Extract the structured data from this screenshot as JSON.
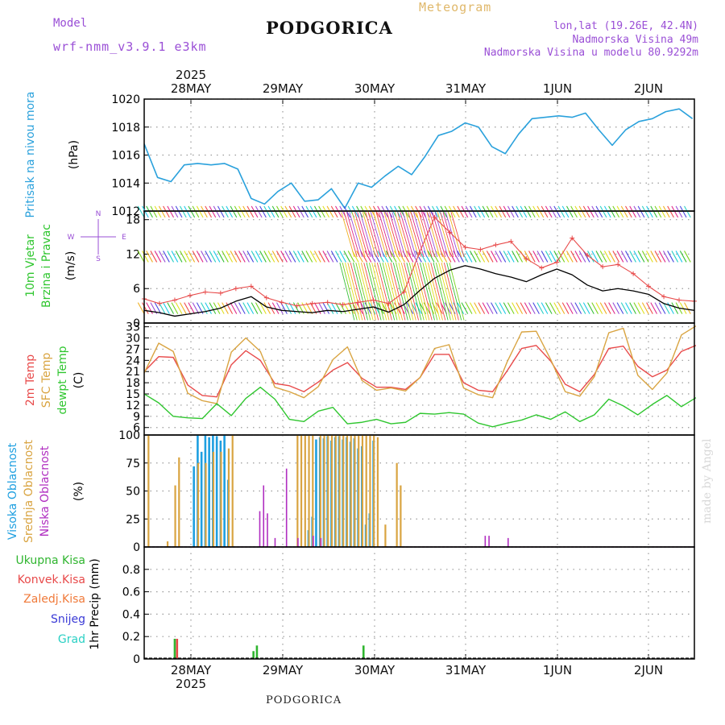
{
  "header": {
    "title": "PODGORICA",
    "bottom_title": "PODGORICA",
    "model_label": "Model",
    "model_name": "wrf-nmm_v3.9.1 e3km",
    "meteogram": "Meteogram",
    "lonlat": "lon,lat (19.26E, 42.4N)",
    "elevation": "Nadmorska Visina 49m",
    "elevation_model": "Nadmorska Visina u modelu 80.9292m",
    "watermark": "made by Angel"
  },
  "time_axis": {
    "year": "2025",
    "day_labels": [
      "28MAY",
      "29MAY",
      "30MAY",
      "31MAY",
      "1JUN",
      "2JUN"
    ]
  },
  "colors": {
    "pressure": "#2aa1dc",
    "temp2m": "#e84a4a",
    "sfc_temp": "#d9a441",
    "dewpoint": "#2fc62f",
    "high_cloud": "#1e9fe0",
    "mid_cloud": "#d9a441",
    "low_cloud": "#b02ec0",
    "precip_total": "#2fb52f",
    "precip_conv": "#e84a4a",
    "wind_speed": "#000000",
    "wind_gust": "#e84a4a",
    "purple": "#9a4fd6"
  },
  "chart_data": [
    {
      "type": "line",
      "title": "Pritisak na nivou mora",
      "ylabel": "(hPa)",
      "ylim": [
        1012,
        1020
      ],
      "yticks": [
        1012,
        1014,
        1016,
        1018,
        1020
      ],
      "x_hours": [
        0,
        3,
        6,
        9,
        12,
        15,
        18,
        21,
        24,
        27,
        30,
        33,
        36,
        39,
        42,
        45,
        48,
        51,
        54,
        57,
        60,
        63,
        66,
        69,
        72,
        75,
        78,
        81,
        84,
        87,
        90,
        93,
        96,
        99,
        102,
        105,
        108,
        111,
        114,
        117,
        120,
        123,
        126,
        129,
        132,
        135,
        138,
        141,
        144
      ],
      "series": [
        {
          "name": "SLP",
          "values": [
            1016.8,
            1014.4,
            1014.1,
            1015.3,
            1015.4,
            1015.3,
            1015.4,
            1015.0,
            1012.9,
            1012.5,
            1013.4,
            1014.0,
            1012.7,
            1012.8,
            1013.6,
            1012.2,
            1014.0,
            1013.7,
            1014.5,
            1015.2,
            1014.6,
            1015.9,
            1017.4,
            1017.7,
            1018.3,
            1018.0,
            1016.6,
            1016.1,
            1017.5,
            1018.6,
            1018.7,
            1018.8,
            1018.7,
            1019.0,
            1017.8,
            1016.7,
            1017.8,
            1018.4,
            1018.6,
            1019.1,
            1019.3,
            1018.6
          ]
        }
      ],
      "series_x_step": 3.5
    },
    {
      "type": "line",
      "title": "10m Vjetar Brzina i Pravac",
      "ylabel": "(m/s)",
      "ylim": [
        0,
        19.5
      ],
      "yticks": [
        0,
        6,
        12,
        18
      ],
      "compass": [
        "N",
        "W",
        "E",
        "S"
      ],
      "series": [
        {
          "name": "wind speed",
          "values": [
            2.2,
            1.8,
            1.2,
            1.6,
            2.0,
            2.6,
            3.8,
            4.6,
            2.8,
            2.2,
            2.0,
            1.8,
            2.2,
            2.0,
            2.4,
            2.8,
            1.9,
            3.2,
            5.6,
            7.8,
            9.2,
            10.0,
            9.4,
            8.6,
            8.0,
            7.2,
            8.4,
            9.4,
            8.4,
            6.6,
            5.6,
            6.0,
            5.6,
            5.0,
            3.4,
            2.6,
            2.2
          ]
        },
        {
          "name": "wind gust",
          "values": [
            4.2,
            3.4,
            4.0,
            4.8,
            5.4,
            5.2,
            6.0,
            6.4,
            4.4,
            3.6,
            3.0,
            3.4,
            3.6,
            3.2,
            3.6,
            4.0,
            3.4,
            5.4,
            12.2,
            18.4,
            15.8,
            13.2,
            12.8,
            13.6,
            14.2,
            11.2,
            9.6,
            10.6,
            14.8,
            11.8,
            9.8,
            10.2,
            8.6,
            6.4,
            4.6,
            4.0,
            3.8
          ]
        }
      ],
      "series_x_step": 4.0
    },
    {
      "type": "line",
      "title": "2m Temp / SFC Temp / dewpt Temp",
      "ylabel": "(C)",
      "ylim": [
        4,
        34
      ],
      "yticks": [
        6,
        9,
        12,
        15,
        18,
        21,
        24,
        27,
        30,
        33
      ],
      "series": [
        {
          "name": "2m Temp",
          "values": [
            21.0,
            25.0,
            24.8,
            17.4,
            14.6,
            14.2,
            22.8,
            26.6,
            24.0,
            17.8,
            17.2,
            15.6,
            18.2,
            21.4,
            23.4,
            19.2,
            16.8,
            16.8,
            16.2,
            19.4,
            25.6,
            25.6,
            18.0,
            16.0,
            15.6,
            21.2,
            27.2,
            28.0,
            23.8,
            17.6,
            15.6,
            20.2,
            27.2,
            27.8,
            22.4,
            19.6,
            21.4,
            26.4,
            28.0
          ]
        },
        {
          "name": "SFC Temp",
          "values": [
            20.6,
            28.6,
            26.4,
            15.2,
            13.2,
            12.4,
            26.2,
            30.0,
            26.4,
            16.8,
            15.6,
            14.0,
            17.0,
            24.2,
            27.6,
            18.6,
            16.0,
            16.6,
            15.8,
            19.4,
            27.2,
            28.2,
            16.6,
            14.8,
            14.0,
            23.6,
            31.6,
            31.8,
            24.2,
            15.6,
            14.4,
            19.6,
            31.4,
            32.6,
            20.0,
            16.2,
            20.6,
            30.8,
            33.2
          ]
        },
        {
          "name": "dewpt Temp",
          "values": [
            15.0,
            12.6,
            9.0,
            8.6,
            8.4,
            12.4,
            9.2,
            13.8,
            16.8,
            13.6,
            8.2,
            7.6,
            10.4,
            11.4,
            7.0,
            7.4,
            8.2,
            7.0,
            7.4,
            9.8,
            9.6,
            10.0,
            9.6,
            7.2,
            6.2,
            7.2,
            8.0,
            9.4,
            8.2,
            10.2,
            7.6,
            9.4,
            13.6,
            11.8,
            9.4,
            12.2,
            14.6,
            11.6,
            14.0
          ]
        }
      ],
      "series_x_step": 3.8
    },
    {
      "type": "bar",
      "title": "Visoka Oblacnost / Srednja Oblacnost / Niska Oblacnost",
      "ylabel": "(%)",
      "ylim": [
        0,
        100
      ],
      "yticks": [
        0,
        25,
        50,
        75,
        100
      ],
      "series": [
        {
          "name": "Visoka Oblacnost",
          "hours": [
            13,
            14,
            15,
            16,
            17,
            18,
            19,
            20,
            21,
            22,
            43,
            44,
            45,
            46,
            47,
            48,
            49,
            50,
            51,
            52,
            53,
            54,
            55,
            56,
            57,
            58,
            59,
            60
          ],
          "values": [
            72,
            100,
            85,
            100,
            98,
            100,
            99,
            95,
            100,
            60,
            15,
            27,
            96,
            98,
            97,
            99,
            95,
            98,
            99,
            96,
            98,
            94,
            97,
            88,
            90,
            20,
            30,
            95
          ]
        },
        {
          "name": "Srednja Oblacnost",
          "hours": [
            1,
            6,
            8,
            9,
            14,
            16,
            18,
            20,
            22,
            23,
            40,
            41,
            42,
            43,
            44,
            46,
            47,
            48,
            49,
            50,
            51,
            52,
            53,
            54,
            55,
            56,
            57,
            58,
            59,
            60,
            61,
            63,
            66,
            67
          ],
          "values": [
            100,
            5,
            55,
            80,
            75,
            75,
            85,
            85,
            88,
            100,
            100,
            100,
            100,
            100,
            100,
            100,
            100,
            100,
            100,
            100,
            100,
            100,
            100,
            100,
            100,
            100,
            100,
            100,
            100,
            100,
            98,
            20,
            75,
            55
          ]
        },
        {
          "name": "Niska Oblacnost",
          "hours": [
            30,
            31,
            32,
            34,
            37,
            40,
            44,
            46,
            89,
            90,
            95
          ],
          "values": [
            32,
            55,
            30,
            8,
            70,
            8,
            10,
            8,
            10,
            10,
            8
          ]
        }
      ]
    },
    {
      "type": "bar",
      "title": "1hr Precip",
      "ylabel": "(mm)",
      "ylim": [
        0,
        1.0
      ],
      "yticks": [
        0,
        0.2,
        0.4,
        0.6,
        0.8
      ],
      "legend": [
        "Ukupna Kisa",
        "Konvek.Kisa",
        "Zaledj.Kisa",
        "Snijeg",
        "Grad"
      ],
      "legend_colors": [
        "#2fb52f",
        "#e84a4a",
        "#f07a3a",
        "#3a3ad6",
        "#2ad0c4"
      ],
      "series": [
        {
          "name": "Ukupna Kisa",
          "hours": [
            8.0,
            28.6,
            29.5,
            57.4
          ],
          "values": [
            0.18,
            0.07,
            0.12,
            0.12
          ]
        },
        {
          "name": "Konvek.Kisa",
          "hours": [
            8.6
          ],
          "values": [
            0.18
          ]
        }
      ]
    }
  ],
  "panel_labels": {
    "pressure": [
      "Pritisak na nivou mora",
      "(hPa)"
    ],
    "wind": [
      "10m Vjetar",
      "Brzina i Pravac",
      "(m/s)"
    ],
    "temp": [
      "2m Temp",
      "SFC Temp",
      "dewpt Temp",
      "(C)"
    ],
    "cloud": [
      "Visoka Oblacnost",
      "Srednja Oblacnost",
      "Niska Oblacnost",
      "(%)"
    ],
    "precip_axis": [
      "1hr Precip",
      "(mm)"
    ]
  }
}
